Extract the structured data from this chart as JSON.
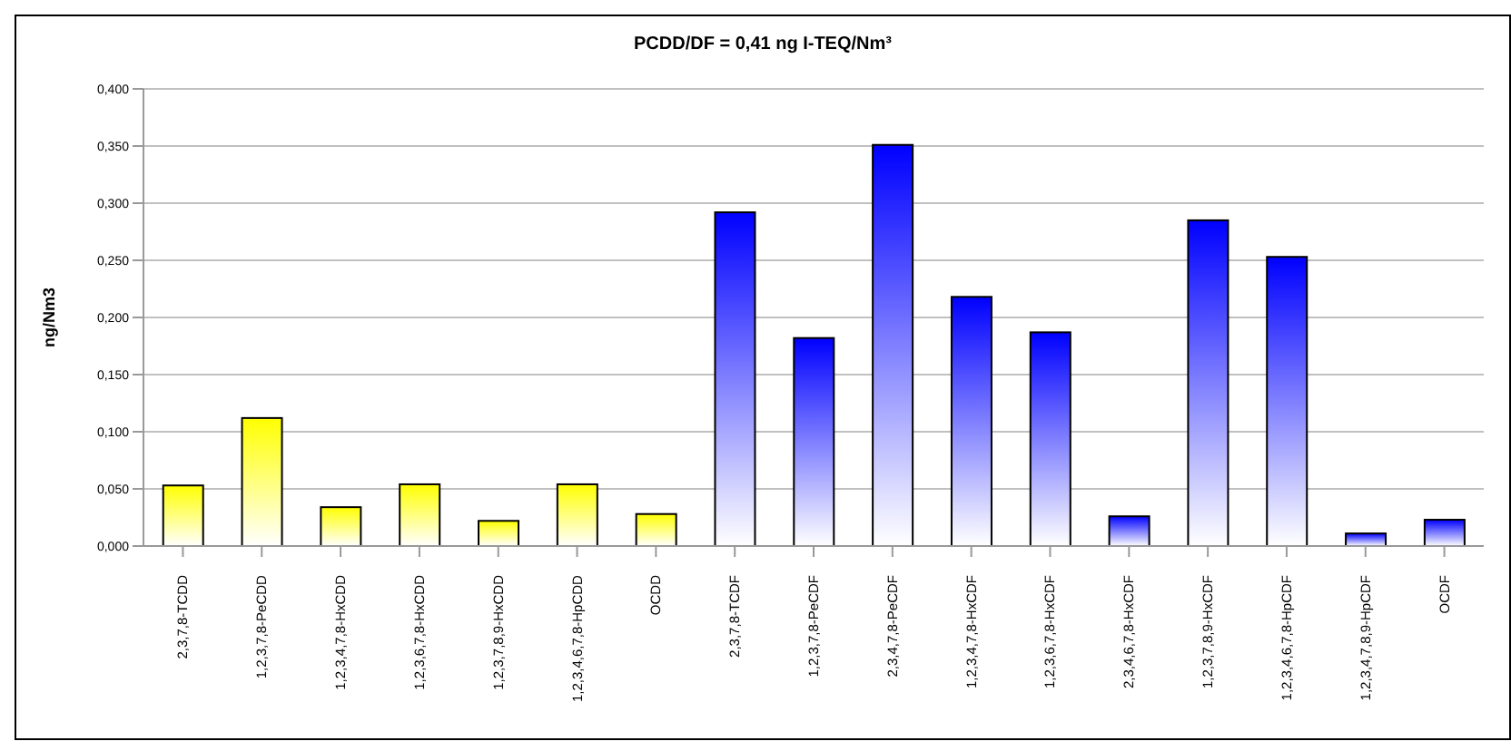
{
  "chart_data": {
    "type": "bar",
    "title": "PCDD/DF  =  0,41  ng I-TEQ/Nm³",
    "ylabel": "ng/Nm3",
    "categories": [
      "2,3,7,8-TCDD",
      "1,2,3,7,8-PeCDD",
      "1,2,3,4,7,8-HxCDD",
      "1,2,3,6,7,8-HxCDD",
      "1,2,3,7,8,9-HxCDD",
      "1,2,3,4,6,7,8-HpCDD",
      "OCDD",
      "2,3,7,8-TCDF",
      "1,2,3,7,8-PeCDF",
      "2,3,4,7,8-PeCDF",
      "1,2,3,4,7,8-HxCDF",
      "1,2,3,6,7,8-HxCDF",
      "2,3,4,6,7,8-HxCDF",
      "1,2,3,7,8,9-HxCDF",
      "1,2,3,4,6,7,8-HpCDF",
      "1,2,3,4,7,8,9-HpCDF",
      "OCDF"
    ],
    "values": [
      0.053,
      0.112,
      0.034,
      0.054,
      0.022,
      0.054,
      0.028,
      0.292,
      0.182,
      0.351,
      0.218,
      0.187,
      0.026,
      0.285,
      0.253,
      0.011,
      0.023
    ],
    "colors": [
      "#ffff00",
      "#ffff00",
      "#ffff00",
      "#ffff00",
      "#ffff00",
      "#ffff00",
      "#ffff00",
      "#0000ff",
      "#0000ff",
      "#0000ff",
      "#0000ff",
      "#0000ff",
      "#0000ff",
      "#0000ff",
      "#0000ff",
      "#0000ff",
      "#0000ff"
    ],
    "ylim": [
      0,
      0.4
    ],
    "yticks": [
      {
        "value": 0,
        "label": "0,000"
      },
      {
        "value": 0.05,
        "label": "0,050"
      },
      {
        "value": 0.1,
        "label": "0,100"
      },
      {
        "value": 0.15,
        "label": "0,150"
      },
      {
        "value": 0.2,
        "label": "0,200"
      },
      {
        "value": 0.25,
        "label": "0,250"
      },
      {
        "value": 0.3,
        "label": "0,300"
      },
      {
        "value": 0.35,
        "label": "0,350"
      },
      {
        "value": 0.4,
        "label": "0,400"
      }
    ],
    "grid": "y"
  }
}
